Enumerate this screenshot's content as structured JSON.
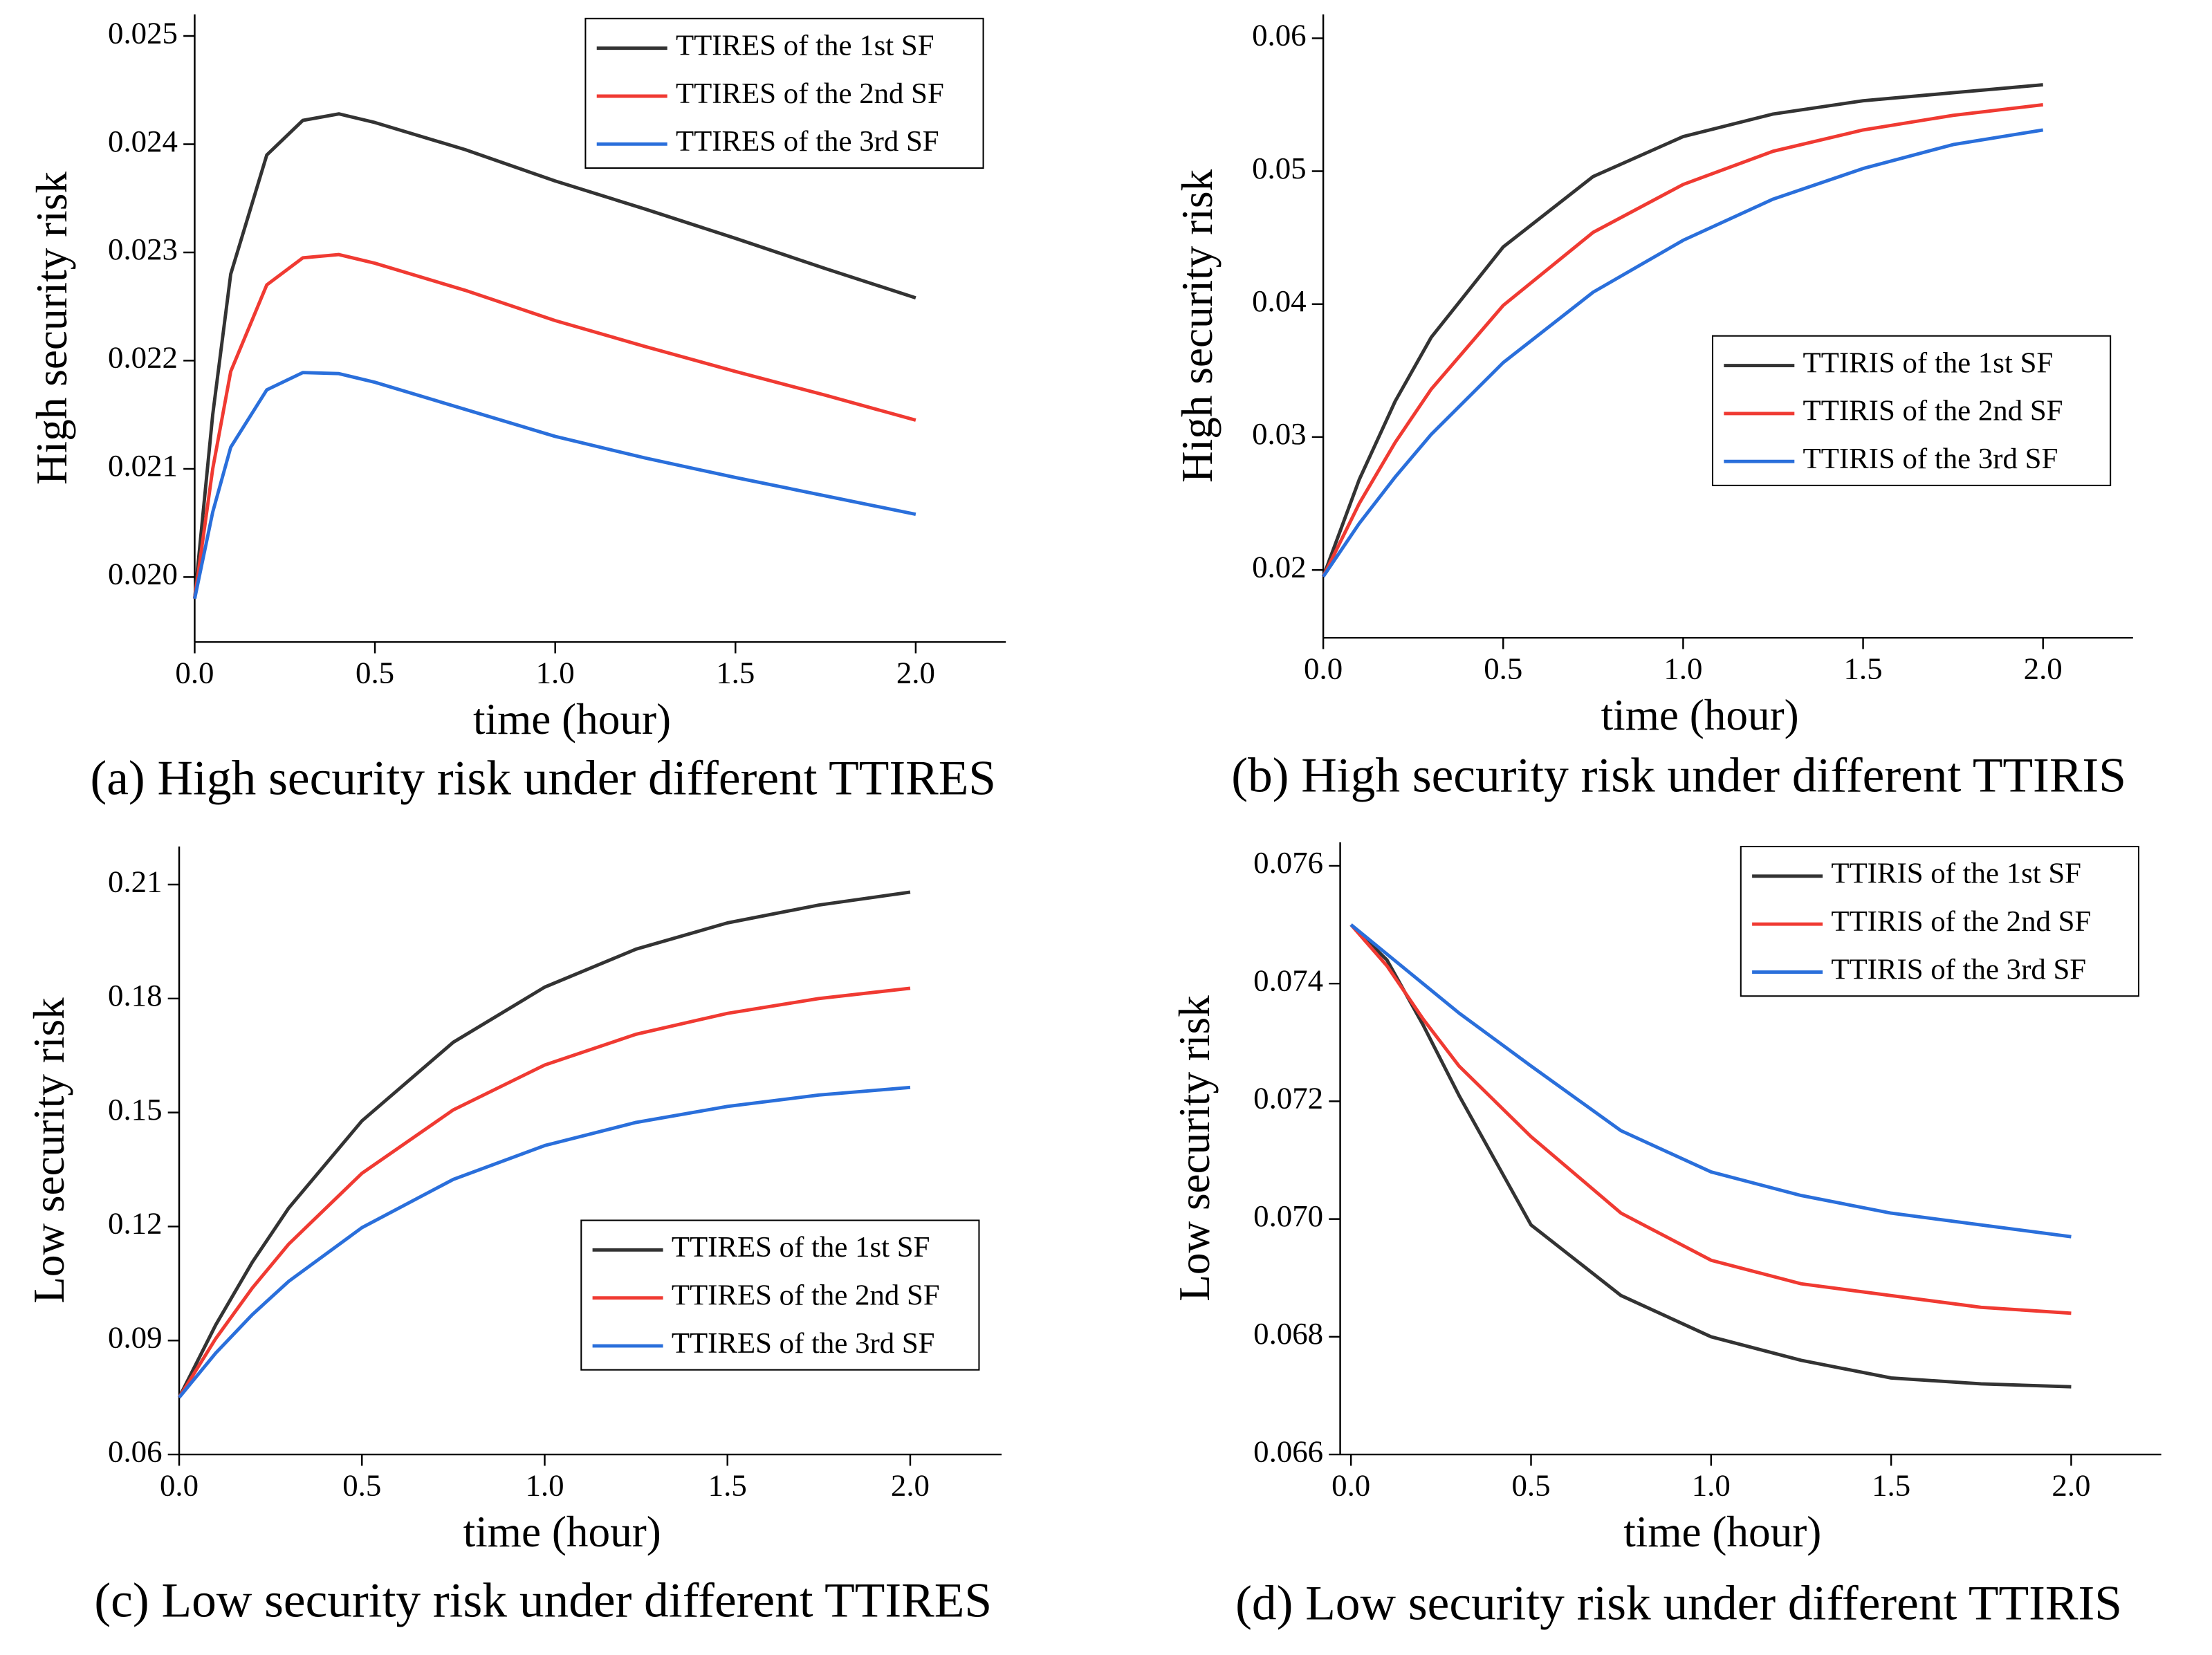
{
  "chart_data": [
    {
      "type": "line",
      "caption": "(a) High security risk under different TTIRES",
      "xlabel": "time (hour)",
      "ylabel": "High security risk",
      "x": [
        0,
        0.05,
        0.1,
        0.2,
        0.3,
        0.4,
        0.5,
        0.75,
        1.0,
        1.25,
        1.5,
        1.75,
        2.0
      ],
      "series": [
        {
          "name": "TTIRES of the 1st SF",
          "color": "#333333",
          "values": [
            0.0198,
            0.0215,
            0.0228,
            0.0239,
            0.02422,
            0.02428,
            0.0242,
            0.02395,
            0.02366,
            0.0234,
            0.02313,
            0.02285,
            0.02258
          ]
        },
        {
          "name": "TTIRES of the 2nd SF",
          "color": "#f03a32",
          "values": [
            0.0198,
            0.021,
            0.0219,
            0.0227,
            0.02295,
            0.02298,
            0.0229,
            0.02265,
            0.02237,
            0.02213,
            0.0219,
            0.02168,
            0.02145
          ]
        },
        {
          "name": "TTIRES of the 3rd SF",
          "color": "#2a6fdb",
          "values": [
            0.0198,
            0.0206,
            0.0212,
            0.02173,
            0.02189,
            0.02188,
            0.0218,
            0.02155,
            0.0213,
            0.0211,
            0.02092,
            0.02075,
            0.02058
          ]
        }
      ],
      "xlim": [
        0,
        2.25
      ],
      "xticks": [
        {
          "value": 0,
          "label": "0.0"
        },
        0.5,
        {
          "value": 1,
          "label": "1.0"
        },
        1.5,
        {
          "value": 2,
          "label": "2.0"
        }
      ],
      "ylim": [
        0.0194,
        0.0252
      ],
      "yticks": [
        {
          "value": 0.02,
          "label": "0.020"
        },
        0.021,
        0.022,
        0.023,
        0.024,
        0.025
      ],
      "legend": "upper right"
    },
    {
      "type": "line",
      "caption": "(b) High security risk under different TTIRIS",
      "xlabel": "time (hour)",
      "ylabel": "High security risk",
      "x": [
        0,
        0.1,
        0.2,
        0.3,
        0.5,
        0.75,
        1.0,
        1.25,
        1.5,
        1.75,
        2.0
      ],
      "series": [
        {
          "name": "TTIRIS of the 1st SF",
          "color": "#333333",
          "values": [
            0.0195,
            0.0268,
            0.0327,
            0.0375,
            0.0443,
            0.0496,
            0.0526,
            0.0543,
            0.0553,
            0.0559,
            0.0565
          ]
        },
        {
          "name": "TTIRIS of the 2nd SF",
          "color": "#f03a32",
          "values": [
            0.0195,
            0.025,
            0.0296,
            0.0336,
            0.0399,
            0.0454,
            0.049,
            0.0515,
            0.0531,
            0.0542,
            0.055
          ]
        },
        {
          "name": "TTIRIS of the 3rd SF",
          "color": "#2a6fdb",
          "values": [
            0.0195,
            0.0235,
            0.027,
            0.0302,
            0.0356,
            0.0409,
            0.0448,
            0.0479,
            0.0502,
            0.052,
            0.0531
          ]
        }
      ],
      "xlim": [
        0,
        2.25
      ],
      "xticks": [
        {
          "value": 0,
          "label": "0.0"
        },
        0.5,
        {
          "value": 1,
          "label": "1.0"
        },
        1.5,
        {
          "value": 2,
          "label": "2.0"
        }
      ],
      "ylim": [
        0.0149,
        0.0618
      ],
      "yticks": [
        0.02,
        0.03,
        0.04,
        0.05,
        0.06
      ],
      "legend": "center right"
    },
    {
      "type": "line",
      "caption": "(c) Low security risk under different TTIRES",
      "xlabel": "time (hour)",
      "ylabel": "Low security risk",
      "x": [
        0,
        0.1,
        0.2,
        0.3,
        0.5,
        0.75,
        1.0,
        1.25,
        1.5,
        1.75,
        2.0
      ],
      "series": [
        {
          "name": "TTIRES of the 1st SF",
          "color": "#333333",
          "values": [
            0.075,
            0.0941,
            0.1106,
            0.1249,
            0.1478,
            0.1685,
            0.183,
            0.193,
            0.1999,
            0.2046,
            0.208
          ]
        },
        {
          "name": "TTIRES of the 2nd SF",
          "color": "#f03a32",
          "values": [
            0.075,
            0.0905,
            0.1038,
            0.1154,
            0.134,
            0.1507,
            0.1625,
            0.1706,
            0.1761,
            0.18,
            0.1827
          ]
        },
        {
          "name": "TTIRES of the 3rd SF",
          "color": "#2a6fdb",
          "values": [
            0.075,
            0.0867,
            0.0968,
            0.1056,
            0.1197,
            0.1324,
            0.1413,
            0.1474,
            0.1516,
            0.1546,
            0.1566
          ]
        }
      ],
      "xlim": [
        0,
        2.25
      ],
      "xticks": [
        {
          "value": 0,
          "label": "0.0"
        },
        0.5,
        {
          "value": 1,
          "label": "1.0"
        },
        1.5,
        {
          "value": 2,
          "label": "2.0"
        }
      ],
      "ylim": [
        0.06,
        0.22
      ],
      "yticks": [
        0.06,
        0.09,
        0.12,
        0.15,
        0.18,
        0.21
      ],
      "legend": "lower right"
    },
    {
      "type": "line",
      "caption": "(d) Low security risk under different TTIRIS",
      "xlabel": "time (hour)",
      "ylabel": "Low security risk",
      "x": [
        0,
        0.1,
        0.2,
        0.3,
        0.5,
        0.75,
        1.0,
        1.25,
        1.5,
        1.75,
        2.0
      ],
      "series": [
        {
          "name": "TTIRIS of the 1st SF",
          "color": "#333333",
          "values": [
            0.075,
            0.0744,
            0.0733,
            0.0721,
            0.0699,
            0.0687,
            0.068,
            0.0676,
            0.0673,
            0.0672,
            0.06715
          ]
        },
        {
          "name": "TTIRIS of the 2nd SF",
          "color": "#f03a32",
          "values": [
            0.075,
            0.0743,
            0.0734,
            0.0726,
            0.0714,
            0.0701,
            0.0693,
            0.0689,
            0.0687,
            0.0685,
            0.0684
          ]
        },
        {
          "name": "TTIRIS of the 3rd SF",
          "color": "#2a6fdb",
          "values": [
            0.075,
            0.0745,
            0.074,
            0.0735,
            0.0726,
            0.0715,
            0.0708,
            0.0704,
            0.0701,
            0.0699,
            0.0697
          ]
        }
      ],
      "xlim": [
        -0.03,
        2.25
      ],
      "xticks": [
        {
          "value": 0,
          "label": "0.0"
        },
        0.5,
        {
          "value": 1,
          "label": "1.0"
        },
        1.5,
        {
          "value": 2,
          "label": "2.0"
        }
      ],
      "ylim": [
        0.066,
        0.0764
      ],
      "yticks": [
        0.066,
        0.068,
        {
          "value": 0.07,
          "label": "0.070"
        },
        0.072,
        0.074,
        0.076
      ],
      "legend": "upper right"
    }
  ]
}
